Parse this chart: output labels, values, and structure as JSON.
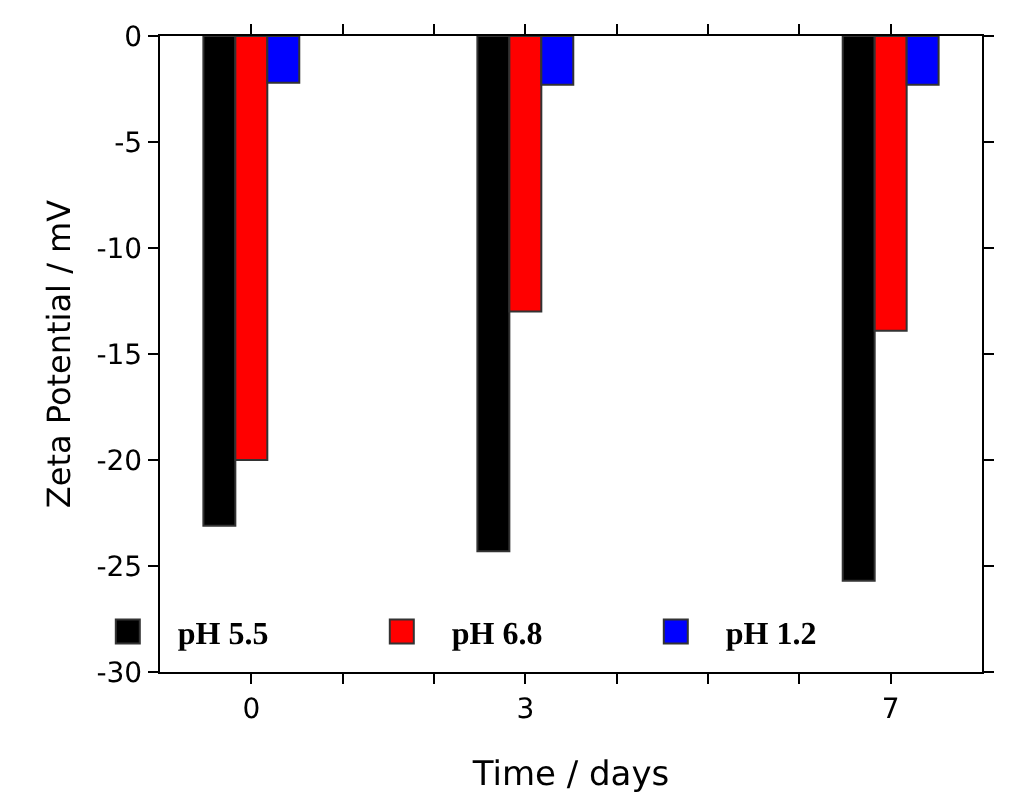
{
  "chart_data": {
    "type": "bar",
    "xlabel": "Time / days",
    "ylabel": "Zeta Potential / mV",
    "x": [
      0,
      3,
      7
    ],
    "series": [
      {
        "name": "pH 5.5",
        "color": "#000000",
        "values": [
          -23.1,
          -24.3,
          -25.7
        ]
      },
      {
        "name": "pH 6.8",
        "color": "#ff0000",
        "values": [
          -20.0,
          -13.0,
          -13.9
        ]
      },
      {
        "name": "pH 1.2",
        "color": "#0000ff",
        "values": [
          -2.2,
          -2.3,
          -2.3
        ]
      }
    ],
    "xlim": [
      -1,
      8
    ],
    "xticks": [
      0,
      {
        "value": 1,
        "label": null
      },
      {
        "value": 2,
        "label": null
      },
      3,
      {
        "value": 4,
        "label": null
      },
      {
        "value": 5,
        "label": null
      },
      {
        "value": 6,
        "label": null
      },
      7
    ],
    "ylim": [
      -30,
      0
    ],
    "yticks": [
      0,
      -5,
      -10,
      -15,
      -20,
      -25,
      -30
    ],
    "legend": "bottom"
  }
}
